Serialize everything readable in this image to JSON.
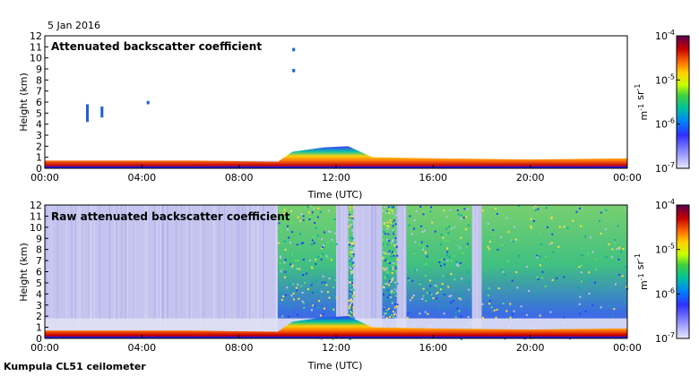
{
  "date_label": "5 Jan 2016",
  "footer": "Kumpula CL51 ceilometer",
  "chart_data": [
    {
      "type": "heatmap",
      "title": "Attenuated backscatter coefficient",
      "xlabel": "Time (UTC)",
      "ylabel": "Height (km)",
      "xlim": [
        0,
        24
      ],
      "ylim": [
        0,
        12
      ],
      "xticks": [
        "00:00",
        "04:00",
        "08:00",
        "12:00",
        "16:00",
        "20:00",
        "00:00"
      ],
      "yticks": [
        "0",
        "1",
        "2",
        "3",
        "4",
        "5",
        "6",
        "7",
        "8",
        "9",
        "10",
        "11",
        "12"
      ],
      "colorbar": {
        "labels": [
          "10-4",
          "10-5",
          "10-6",
          "10-7"
        ],
        "unit": "m-1 sr-1",
        "colors": [
          "#5a0050",
          "#c80000",
          "#ff7000",
          "#ffd000",
          "#c8ff00",
          "#40d040",
          "#00c0a0",
          "#0080ff",
          "#3030ff",
          "#9090ff",
          "#e8e8ff"
        ]
      },
      "features": {
        "boundary_layer_top_km": [
          [
            0,
            0.7
          ],
          [
            6,
            0.7
          ],
          [
            9.6,
            0.6
          ],
          [
            10.2,
            1.5
          ],
          [
            11.5,
            1.9
          ],
          [
            12.5,
            2.0
          ],
          [
            13.5,
            1.0
          ],
          [
            16,
            0.9
          ],
          [
            20,
            0.8
          ],
          [
            24,
            0.9
          ]
        ],
        "cloud_patches": [
          [
            1.7,
            4.2,
            5.8
          ],
          [
            2.3,
            4.6,
            5.6
          ],
          [
            4.2,
            5.8,
            6.1
          ],
          [
            10.2,
            10.6,
            10.9
          ],
          [
            10.2,
            8.7,
            9.0
          ]
        ]
      }
    },
    {
      "type": "heatmap",
      "title": "Raw attenuated backscatter coefficient",
      "xlabel": "Time (UTC)",
      "ylabel": "Height (km)",
      "xlim": [
        0,
        24
      ],
      "ylim": [
        0,
        12
      ],
      "xticks": [
        "00:00",
        "04:00",
        "08:00",
        "12:00",
        "16:00",
        "20:00",
        "00:00"
      ],
      "yticks": [
        "0",
        "1",
        "2",
        "3",
        "4",
        "5",
        "6",
        "7",
        "8",
        "9",
        "10",
        "11",
        "12"
      ],
      "colorbar": {
        "labels": [
          "10-4",
          "10-5",
          "10-6",
          "10-7"
        ],
        "unit": "m-1 sr-1",
        "colors": [
          "#5a0050",
          "#c80000",
          "#ff7000",
          "#ffd000",
          "#c8ff00",
          "#40d040",
          "#00c0a0",
          "#0080ff",
          "#3030ff",
          "#9090ff",
          "#e8e8ff"
        ]
      },
      "features": {
        "noise_bands_hours": [
          [
            9.6,
            12.0
          ],
          [
            12.5,
            12.7
          ],
          [
            13.9,
            14.5
          ],
          [
            14.9,
            17.6
          ],
          [
            18.0,
            24.0
          ]
        ]
      }
    }
  ]
}
